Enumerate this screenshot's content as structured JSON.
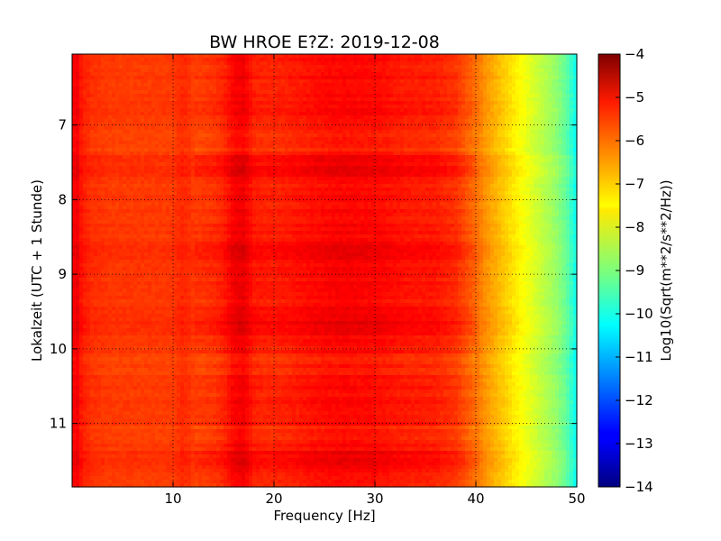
{
  "chart_data": {
    "type": "heatmap",
    "title": "BW HROE E?Z: 2019-12-08",
    "xlabel": "Frequency [Hz]",
    "ylabel": "Lokalzeit (UTC + 1 Stunde)",
    "xlim": [
      0,
      50
    ],
    "ylim": [
      11.85,
      6.05
    ],
    "x_ticks": [
      10,
      20,
      30,
      40,
      50
    ],
    "y_ticks": [
      7,
      8,
      9,
      10,
      11
    ],
    "grid": true,
    "colormap": "jet",
    "colorbar": {
      "label": "Log10(Sqrt(m**2/s**2/Hz))",
      "range": [
        -14,
        -4
      ],
      "ticks": [
        -4,
        -5,
        -6,
        -7,
        -8,
        -9,
        -10,
        -11,
        -12,
        -13,
        -14
      ]
    },
    "spectrum_profile": {
      "frequency_hz": [
        0,
        0.5,
        1,
        2,
        4,
        6,
        8,
        10,
        11,
        12,
        14,
        15,
        16,
        17,
        18,
        20,
        22,
        25,
        27,
        30,
        33,
        36,
        38,
        39,
        40,
        41,
        42,
        43,
        44,
        45,
        46,
        47,
        48,
        49,
        50
      ],
      "log10_amplitude": [
        -5.3,
        -5.1,
        -5.5,
        -5.7,
        -5.8,
        -5.8,
        -5.8,
        -5.8,
        -5.6,
        -5.8,
        -5.7,
        -5.55,
        -5.2,
        -5.1,
        -5.5,
        -5.55,
        -5.45,
        -5.3,
        -5.25,
        -5.3,
        -5.45,
        -5.5,
        -5.7,
        -6.0,
        -6.3,
        -6.7,
        -7.0,
        -7.3,
        -7.6,
        -7.9,
        -8.2,
        -8.5,
        -8.8,
        -9.3,
        -10.2
      ]
    },
    "quiet_time_bands": [
      [
        7.0,
        7.35
      ],
      [
        10.05,
        10.35
      ],
      [
        11.05,
        11.2
      ]
    ],
    "loud_time_bands": [
      [
        7.4,
        7.7
      ],
      [
        8.55,
        8.85
      ],
      [
        9.45,
        9.8
      ],
      [
        11.35,
        11.55
      ]
    ]
  }
}
